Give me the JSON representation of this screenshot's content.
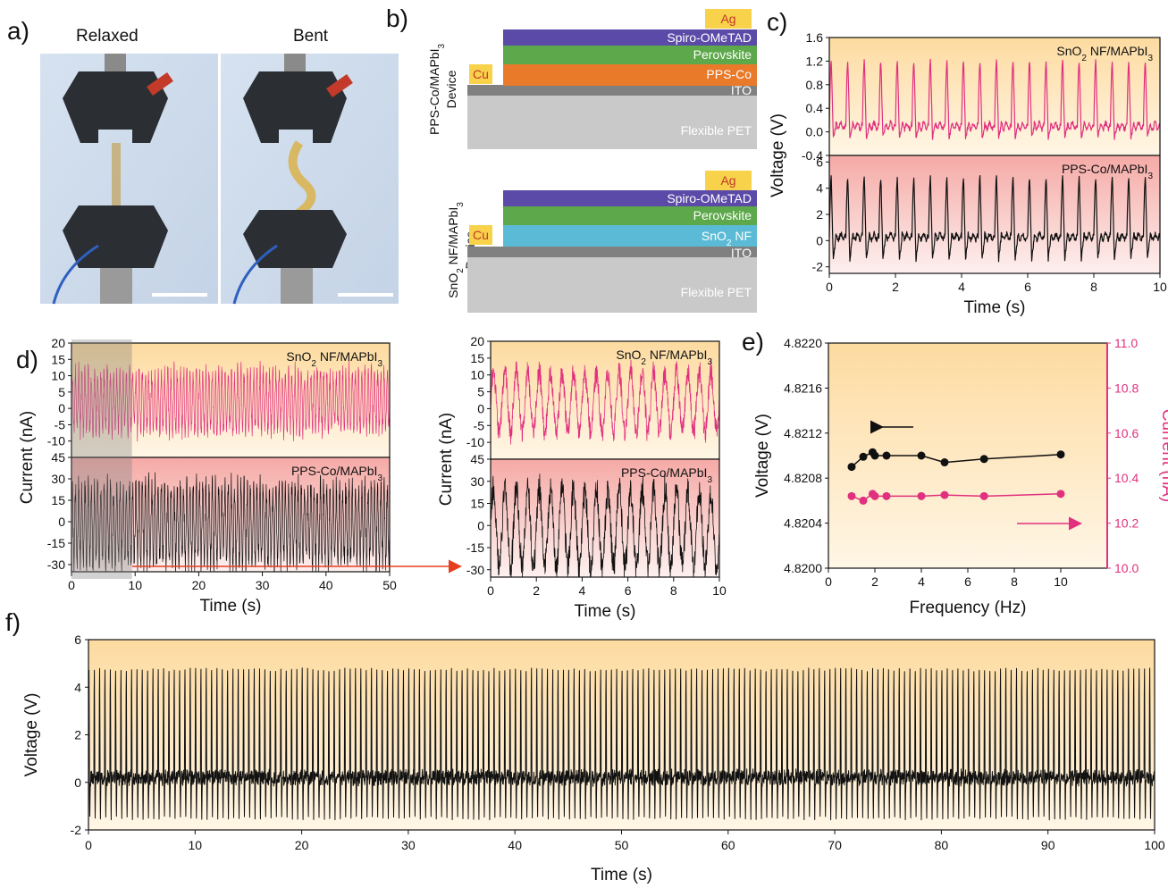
{
  "panel_labels": [
    "a)",
    "b)",
    "c)",
    "d)",
    "e)",
    "f)"
  ],
  "panel_a": {
    "relaxed_label": "Relaxed",
    "bent_label": "Bent"
  },
  "panel_b": {
    "device_top": {
      "name": "PPS-Co/MAPbI3",
      "device_word": "Device",
      "layers": [
        "Ag",
        "Spiro-OMeTAD",
        "Perovskite",
        "PPS-Co",
        "ITO",
        "Flexible PET"
      ],
      "contact": "Cu"
    },
    "device_bottom": {
      "name": "SnO2 NF/MAPbI3",
      "device_word": "Device",
      "layers": [
        "Ag",
        "Spiro-OMeTAD",
        "Perovskite",
        "SnO2 NF",
        "ITO",
        "Flexible PET"
      ],
      "contact": "Cu"
    }
  },
  "colors": {
    "pink": "#e0307e",
    "black": "#111111",
    "bg_orange": "#fde3b0",
    "bg_pink": "#f7b8b3",
    "arrow_red": "#e53f1f",
    "spiro": "#5b4aa8",
    "perovskite": "#5ca84a",
    "ppsco": "#e87a2a",
    "sno2": "#5bbbd6",
    "ito": "#808080",
    "pet": "#c9c9c9",
    "ag": "#f8d24a",
    "cu": "#f8d24a"
  },
  "chart_data": [
    {
      "id": "c",
      "type": "line",
      "xlabel": "Time (s)",
      "ylabel": "Voltage (V)",
      "xlim": [
        0,
        10
      ],
      "xticks": [
        0,
        2,
        4,
        6,
        8,
        10
      ],
      "series": [
        {
          "name": "SnO2 NF/MAPbI3",
          "color": "#e0307e",
          "ylim": [
            -0.4,
            1.6
          ],
          "yticks": [
            -0.4,
            0.0,
            0.4,
            0.8,
            1.2,
            1.6
          ],
          "frequency_hz": 2,
          "peak": 1.2,
          "baseline": 0.1,
          "valley": -0.1
        },
        {
          "name": "PPS-Co/MAPbI3",
          "color": "#111111",
          "ylim": [
            -2.5,
            6.5
          ],
          "yticks": [
            -2,
            0,
            2,
            4,
            6
          ],
          "frequency_hz": 2,
          "peak": 4.8,
          "baseline": 0.3,
          "valley": -1.5
        }
      ]
    },
    {
      "id": "d",
      "type": "line",
      "xlabel": "Time (s)",
      "ylabel": "Current (nA)",
      "xlim": [
        0,
        50
      ],
      "xticks": [
        0,
        10,
        20,
        30,
        40,
        50
      ],
      "highlight_x": [
        0,
        9.5
      ],
      "series": [
        {
          "name": "SnO2 NF/MAPbI3",
          "color": "#e0307e",
          "ylim": [
            -15,
            20
          ],
          "yticks": [
            -10,
            -5,
            0,
            5,
            10,
            15,
            20
          ],
          "frequency_hz": 2,
          "peak": 12,
          "valley": -8
        },
        {
          "name": "PPS-Co/MAPbI3",
          "color": "#111111",
          "ylim": [
            -35,
            45
          ],
          "yticks": [
            -30,
            -15,
            0,
            15,
            30,
            45
          ],
          "frequency_hz": 2,
          "peak": 28,
          "valley": -32
        }
      ]
    },
    {
      "id": "d_zoom",
      "type": "line",
      "xlabel": "Time (s)",
      "ylabel": "Current (nA)",
      "xlim": [
        0,
        10
      ],
      "xticks": [
        0,
        2,
        4,
        6,
        8,
        10
      ],
      "series": [
        {
          "name": "SnO2 NF/MAPbI3",
          "color": "#e0307e",
          "ylim": [
            -15,
            20
          ],
          "yticks": [
            -10,
            -5,
            0,
            5,
            10,
            15,
            20
          ],
          "frequency_hz": 2,
          "peak": 12,
          "valley": -8
        },
        {
          "name": "PPS-Co/MAPbI3",
          "color": "#111111",
          "ylim": [
            -35,
            45
          ],
          "yticks": [
            -30,
            -15,
            0,
            15,
            30,
            45
          ],
          "frequency_hz": 2,
          "peak": 28,
          "valley": -32
        }
      ]
    },
    {
      "id": "e",
      "type": "scatter",
      "xlabel": "Frequency (Hz)",
      "ylabel": "Voltage (V)",
      "y2label": "Current (nA)",
      "xlim": [
        0,
        12
      ],
      "xticks": [
        0,
        2,
        4,
        6,
        8,
        10
      ],
      "ylim": [
        4.82,
        4.822
      ],
      "yticks": [
        4.82,
        4.8204,
        4.8208,
        4.8212,
        4.8216,
        4.822
      ],
      "y2lim": [
        10.0,
        11.0
      ],
      "y2ticks": [
        10.0,
        10.2,
        10.4,
        10.6,
        10.8,
        11.0
      ],
      "series": [
        {
          "name": "Voltage",
          "axis": "left",
          "color": "#111111",
          "x": [
            1,
            1.5,
            1.9,
            2,
            2.5,
            4,
            5,
            6.7,
            10
          ],
          "y": [
            4.8209,
            4.82099,
            4.82103,
            4.821,
            4.821,
            4.821,
            4.82094,
            4.82097,
            4.82101
          ]
        },
        {
          "name": "Current",
          "axis": "right",
          "color": "#e0307e",
          "x": [
            1,
            1.5,
            1.9,
            2,
            2.5,
            4,
            5,
            6.7,
            10
          ],
          "y": [
            10.32,
            10.3,
            10.33,
            10.32,
            10.32,
            10.32,
            10.325,
            10.32,
            10.33
          ]
        }
      ]
    },
    {
      "id": "f",
      "type": "line",
      "xlabel": "Time (s)",
      "ylabel": "Voltage (V)",
      "xlim": [
        0,
        100
      ],
      "xticks": [
        0,
        10,
        20,
        30,
        40,
        50,
        60,
        70,
        80,
        90,
        100
      ],
      "ylim": [
        -2,
        6
      ],
      "yticks": [
        -2,
        0,
        2,
        4,
        6
      ],
      "series": [
        {
          "name": "",
          "color": "#111111",
          "frequency_hz": 2,
          "peak": 4.8,
          "baseline": 0.2,
          "valley": -1.5
        }
      ]
    }
  ]
}
